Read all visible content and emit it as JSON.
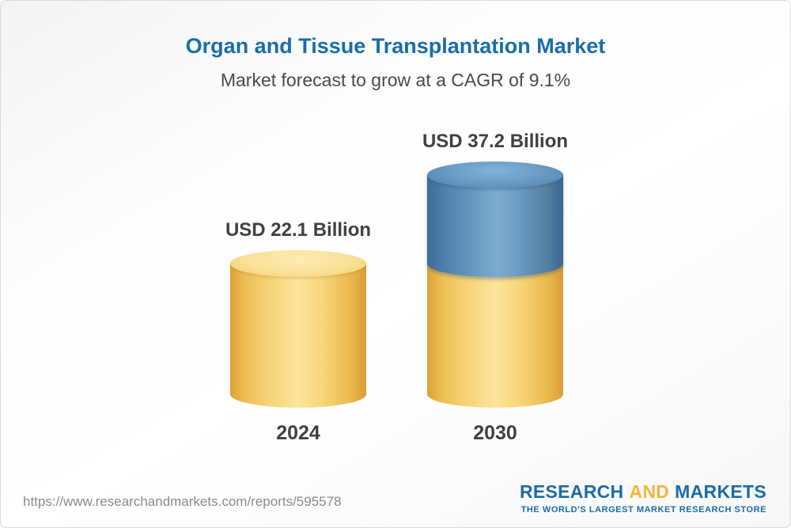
{
  "header": {
    "title": "Organ and Tissue Transplantation Market",
    "subtitle": "Market forecast to grow at a CAGR of 9.1%"
  },
  "chart_data": {
    "type": "bar",
    "variant": "3d-cylinder",
    "categories": [
      "2024",
      "2030"
    ],
    "values": [
      22.1,
      37.2
    ],
    "value_labels": [
      "USD 22.1 Billion",
      "USD 37.2 Billion"
    ],
    "unit": "USD Billion",
    "cagr": "9.1%",
    "title": "Organ and Tissue Transplantation Market",
    "subtitle": "Market forecast to grow at a CAGR of 9.1%",
    "legend": "none",
    "grid": "off",
    "colors": {
      "base_segment": "#F5CD63",
      "growth_segment": "#4E81AC"
    }
  },
  "footer": {
    "url": "https://www.researchandmarkets.com/reports/595578",
    "logo": {
      "part1": "RESEARCH",
      "part2": "AND",
      "part3": "MARKETS",
      "tagline": "THE WORLD'S LARGEST MARKET RESEARCH STORE"
    }
  }
}
